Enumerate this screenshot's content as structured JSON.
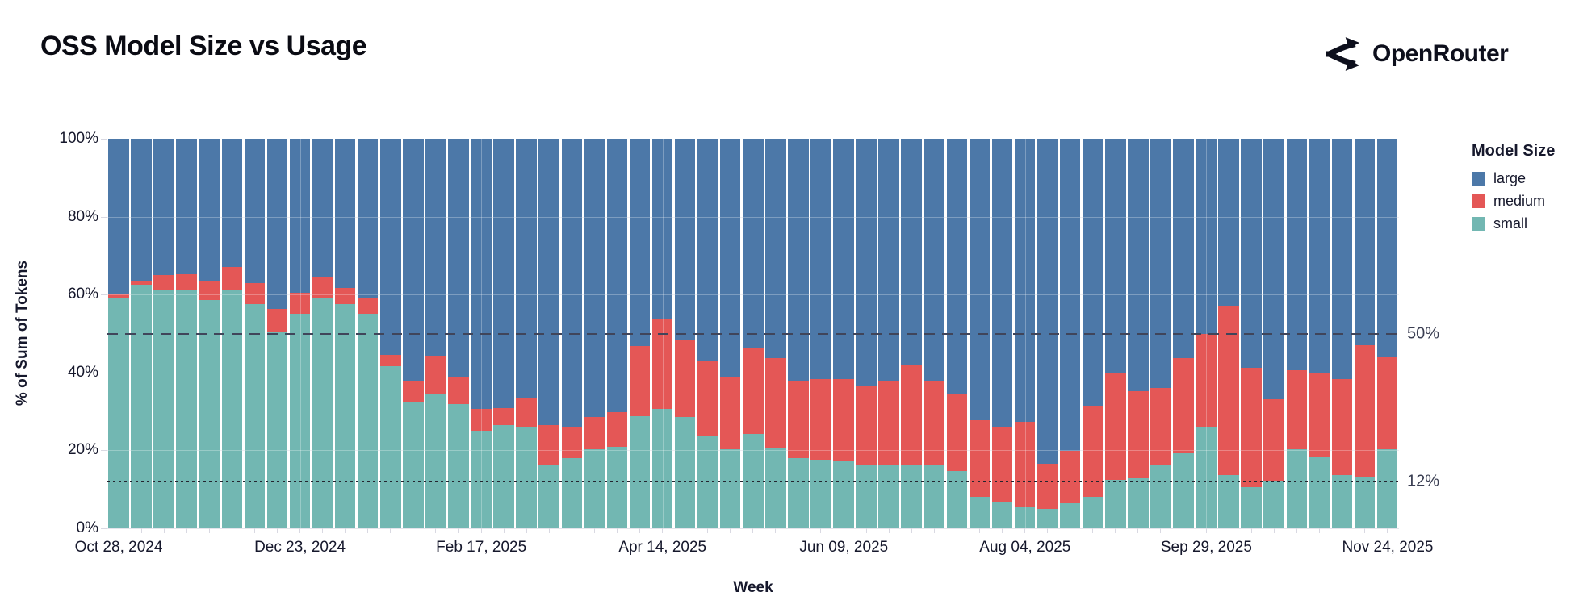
{
  "header": {
    "title": "OSS Model Size vs Usage",
    "logo_text": "OpenRouter"
  },
  "chart": {
    "y_axis": {
      "title": "% of Sum of Tokens",
      "ticks": [
        "100%",
        "80%",
        "60%",
        "40%",
        "20%",
        "0%"
      ]
    },
    "x_axis": {
      "title": "Week",
      "ticks": [
        "Oct 28, 2024",
        "Dec 23, 2024",
        "Feb 17, 2025",
        "Apr 14, 2025",
        "Jun 09, 2025",
        "Aug 04, 2025",
        "Sep 29, 2025",
        "Nov 24, 2025"
      ]
    },
    "legend": {
      "title": "Model Size",
      "items": [
        {
          "label": "large",
          "color": "#4c78a8"
        },
        {
          "label": "medium",
          "color": "#e45756"
        },
        {
          "label": "small",
          "color": "#72b7b2"
        }
      ]
    },
    "annotations": [
      {
        "label": "50%",
        "value": 50,
        "style": "dashed"
      },
      {
        "label": "12%",
        "value": 12,
        "style": "dotted"
      }
    ]
  },
  "chart_data": {
    "type": "bar",
    "stacked": true,
    "title": "OSS Model Size vs Usage",
    "xlabel": "Week",
    "ylabel": "% of Sum of Tokens",
    "ylim": [
      0,
      100
    ],
    "grid": true,
    "legend_position": "right",
    "x_tick_interval_weeks": 8,
    "x": [
      "Oct 28, 2024",
      "Nov 04, 2024",
      "Nov 11, 2024",
      "Nov 18, 2024",
      "Nov 25, 2024",
      "Dec 02, 2024",
      "Dec 09, 2024",
      "Dec 16, 2024",
      "Dec 23, 2024",
      "Dec 30, 2024",
      "Jan 06, 2025",
      "Jan 13, 2025",
      "Jan 20, 2025",
      "Jan 27, 2025",
      "Feb 03, 2025",
      "Feb 10, 2025",
      "Feb 17, 2025",
      "Feb 24, 2025",
      "Mar 03, 2025",
      "Mar 10, 2025",
      "Mar 17, 2025",
      "Mar 24, 2025",
      "Mar 31, 2025",
      "Apr 07, 2025",
      "Apr 14, 2025",
      "Apr 21, 2025",
      "Apr 28, 2025",
      "May 05, 2025",
      "May 12, 2025",
      "May 19, 2025",
      "May 26, 2025",
      "Jun 02, 2025",
      "Jun 09, 2025",
      "Jun 16, 2025",
      "Jun 23, 2025",
      "Jun 30, 2025",
      "Jul 07, 2025",
      "Jul 14, 2025",
      "Jul 21, 2025",
      "Jul 28, 2025",
      "Aug 04, 2025",
      "Aug 11, 2025",
      "Aug 18, 2025",
      "Aug 25, 2025",
      "Sep 01, 2025",
      "Sep 08, 2025",
      "Sep 15, 2025",
      "Sep 22, 2025",
      "Sep 29, 2025",
      "Oct 06, 2025",
      "Oct 13, 2025",
      "Oct 20, 2025",
      "Oct 27, 2025",
      "Nov 03, 2025",
      "Nov 10, 2025",
      "Nov 17, 2025",
      "Nov 24, 2025"
    ],
    "series": [
      {
        "name": "small",
        "color": "#72b7b2",
        "values": [
          59,
          62.5,
          61,
          61,
          58.5,
          61,
          57.5,
          50.3,
          55,
          59,
          57.6,
          55,
          41.6,
          32.2,
          34.5,
          31.9,
          25.1,
          26.4,
          26,
          16.4,
          18,
          20.3,
          21,
          28.8,
          30.7,
          28.5,
          23.8,
          20.3,
          24.2,
          20.5,
          18,
          17.5,
          17.4,
          16.1,
          16.2,
          16.4,
          16.2,
          14.7,
          8.1,
          6.7,
          5.5,
          5,
          6.4,
          8.1,
          12.4,
          12.8,
          16.4,
          19.3,
          26,
          13.6,
          10.6,
          12.2,
          20.2,
          18.4,
          13.6,
          13.1,
          20.2
        ]
      },
      {
        "name": "medium",
        "color": "#e45756",
        "values": [
          1,
          1,
          4,
          4.3,
          5,
          6,
          5.5,
          6.1,
          5.5,
          5.5,
          4,
          4.3,
          2.9,
          5.7,
          9.8,
          6.9,
          5.6,
          4.4,
          7.3,
          10,
          8,
          8.2,
          8.9,
          17.9,
          23.1,
          20,
          19,
          18.5,
          22.2,
          23.2,
          19.9,
          20.8,
          20.8,
          20.3,
          21.6,
          25.5,
          21.6,
          19.8,
          19.7,
          19.2,
          21.9,
          11.6,
          13.4,
          23.4,
          27.4,
          22.4,
          19.7,
          24.4,
          23.9,
          43.5,
          30.6,
          21,
          20.3,
          21.6,
          24.8,
          33.8,
          24
        ]
      },
      {
        "name": "large",
        "color": "#4c78a8",
        "values": [
          40,
          36.5,
          35,
          34.7,
          36.5,
          33,
          37,
          43.6,
          39.5,
          35.5,
          38.4,
          40.7,
          55.5,
          62.1,
          55.7,
          61.2,
          69.3,
          69.2,
          66.7,
          73.6,
          74,
          71.5,
          70.1,
          53.3,
          46.2,
          51.5,
          57.2,
          61.2,
          53.6,
          56.3,
          62.1,
          61.7,
          61.8,
          63.6,
          62.2,
          58.1,
          62.2,
          65.5,
          72.2,
          74.1,
          72.6,
          83.4,
          80.2,
          68.5,
          60.2,
          64.8,
          63.9,
          56.3,
          50.1,
          42.9,
          58.8,
          66.8,
          59.5,
          60,
          61.6,
          53.1,
          55.8
        ]
      }
    ]
  }
}
